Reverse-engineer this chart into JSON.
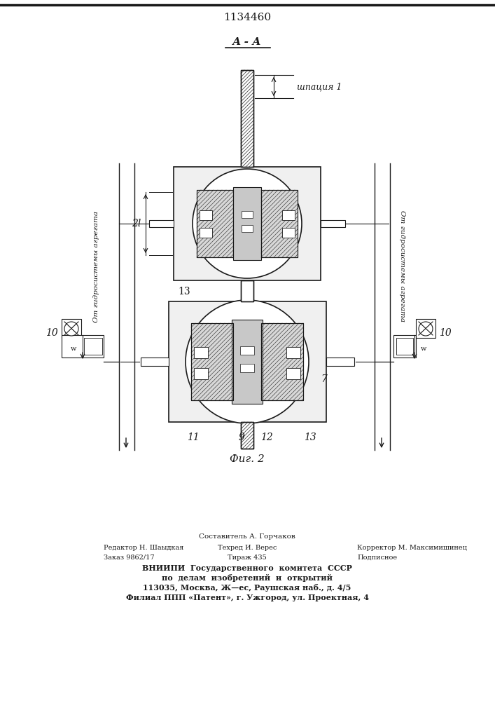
{
  "patent_number": "1134460",
  "fig_label": "Фиг. 2",
  "section_label": "А - А",
  "annotation_shpatsiya": "шпация 1",
  "label_2l": "2l",
  "label_13_top": "13",
  "label_13_bottom": "13",
  "label_7": "7",
  "label_9": "9",
  "label_10_left": "10",
  "label_10_right": "10",
  "label_11": "11",
  "label_12": "12",
  "left_text": "От гидросистемы агрегата",
  "right_text": "От гидросистемы агрегата",
  "footer_line1": "Составитель А. Горчаков",
  "footer_line2_left": "Редактор Н. Шаыдкая",
  "footer_line2_mid": "Техред И. Верес",
  "footer_line2_right": "Корректор М. Максимишинец",
  "footer_line3_left": "Заказ 9862/17",
  "footer_line3_mid": "Тираж 435",
  "footer_line3_right": "Подписное",
  "footer_vniipи": "ВНИИПИ  Государственного  комитета  СССР",
  "footer_po": "по  делам  изобретений  и  открытий",
  "footer_addr": "113035, Москва, Ж—ес, Раушская наб., д. 4/5",
  "footer_filial": "Филиал ППП «Патент», г. Ужгород, ул. Проектная, 4",
  "bg_color": "#ffffff",
  "line_color": "#1a1a1a"
}
